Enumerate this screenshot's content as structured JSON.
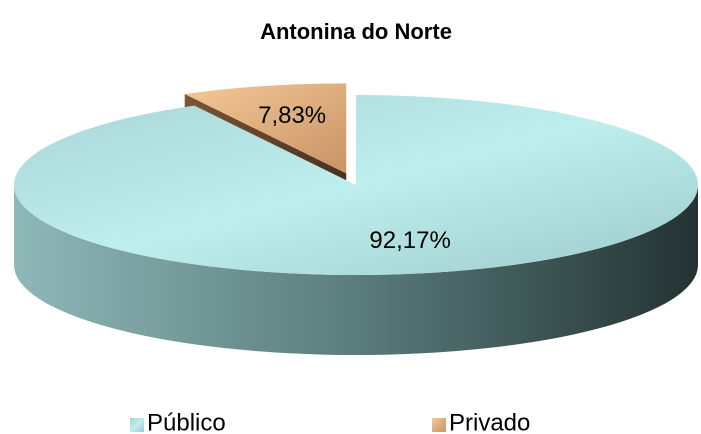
{
  "chart_data": {
    "type": "pie",
    "title": "Antonina do Norte",
    "categories": [
      "Público",
      "Privado"
    ],
    "values": [
      92.17,
      7.83
    ],
    "value_labels": [
      "92,17%",
      "7,83%"
    ],
    "colors": [
      "#b8e8e8",
      "#e0b080"
    ],
    "legend": "bottom"
  }
}
